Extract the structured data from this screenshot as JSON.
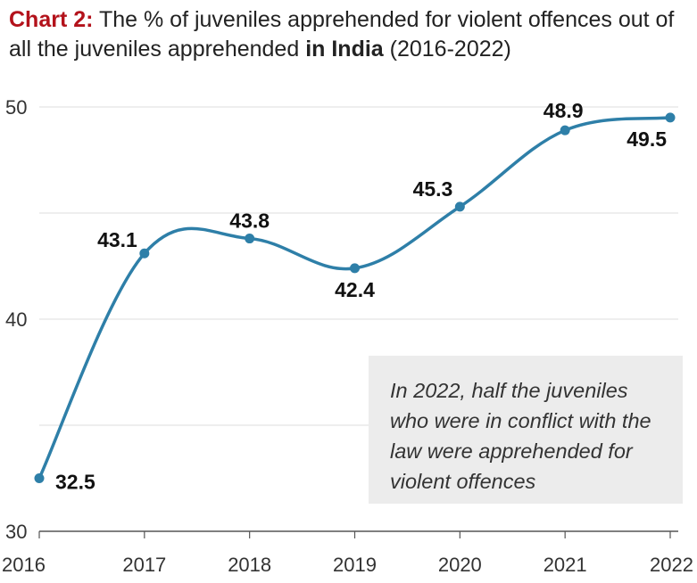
{
  "title": {
    "lead": "Chart 2:",
    "text1": " The % of juveniles apprehended for violent offences out of all the juveniles apprehended ",
    "bold": "in India",
    "text2": " (2016-2022)"
  },
  "annotation": "In 2022, half the juveniles who were in conflict with the law were apprehended for violent offences",
  "colors": {
    "line": "#2e7fa8",
    "accent": "#b3121b",
    "grid": "#dddddd",
    "note_bg": "#ececec"
  },
  "chart_data": {
    "type": "line",
    "title": "Chart 2: The % of juveniles apprehended for violent offences out of all the juveniles apprehended in India (2016-2022)",
    "x": [
      "2016",
      "2017",
      "2018",
      "2019",
      "2020",
      "2021",
      "2022"
    ],
    "series": [
      {
        "name": "% apprehended for violent offences",
        "values": [
          32.5,
          43.1,
          43.8,
          42.4,
          45.3,
          48.9,
          49.5
        ]
      }
    ],
    "data_labels": [
      "32.5",
      "43.1",
      "43.8",
      "42.4",
      "45.3",
      "48.9",
      "49.5"
    ],
    "yticks": [
      30,
      40,
      50
    ],
    "ylim": [
      30,
      50
    ],
    "xlabel": "",
    "ylabel": "",
    "grid": true
  }
}
